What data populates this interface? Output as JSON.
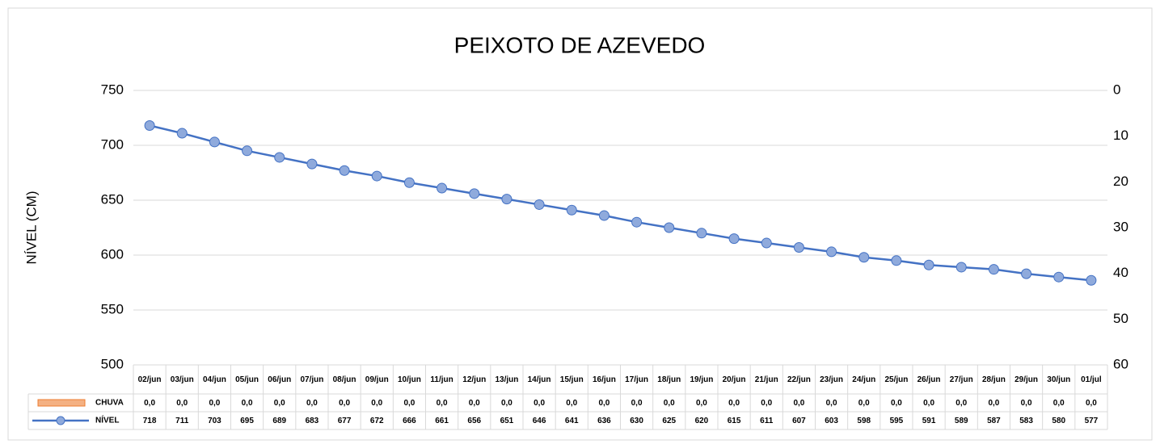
{
  "chart_data": {
    "type": "line",
    "title": "PEIXOTO DE AZEVEDO",
    "y_label": "NÍVEL (CM)",
    "categories": [
      "02/jun",
      "03/jun",
      "04/jun",
      "05/jun",
      "06/jun",
      "07/jun",
      "08/jun",
      "09/jun",
      "10/jun",
      "11/jun",
      "12/jun",
      "13/jun",
      "14/jun",
      "15/jun",
      "16/jun",
      "17/jun",
      "18/jun",
      "19/jun",
      "20/jun",
      "21/jun",
      "22/jun",
      "23/jun",
      "24/jun",
      "25/jun",
      "26/jun",
      "27/jun",
      "28/jun",
      "29/jun",
      "30/jun",
      "01/jul"
    ],
    "series": [
      {
        "name": "CHUVA",
        "type": "bar",
        "axis": "y2",
        "color": "#f4b183",
        "values": [
          0,
          0,
          0,
          0,
          0,
          0,
          0,
          0,
          0,
          0,
          0,
          0,
          0,
          0,
          0,
          0,
          0,
          0,
          0,
          0,
          0,
          0,
          0,
          0,
          0,
          0,
          0,
          0,
          0,
          0
        ],
        "value_labels": [
          "0,0",
          "0,0",
          "0,0",
          "0,0",
          "0,0",
          "0,0",
          "0,0",
          "0,0",
          "0,0",
          "0,0",
          "0,0",
          "0,0",
          "0,0",
          "0,0",
          "0,0",
          "0,0",
          "0,0",
          "0,0",
          "0,0",
          "0,0",
          "0,0",
          "0,0",
          "0,0",
          "0,0",
          "0,0",
          "0,0",
          "0,0",
          "0,0",
          "0,0",
          "0,0"
        ]
      },
      {
        "name": "NÍVEL",
        "type": "line",
        "color": "#4472c4",
        "values": [
          718,
          711,
          703,
          695,
          689,
          683,
          677,
          672,
          666,
          661,
          656,
          651,
          646,
          641,
          636,
          630,
          625,
          620,
          615,
          611,
          607,
          603,
          598,
          595,
          591,
          589,
          587,
          583,
          580,
          577
        ]
      }
    ],
    "ylim": [
      500,
      750
    ],
    "yticks": [
      500,
      550,
      600,
      650,
      700,
      750
    ],
    "y2lim": [
      60,
      0
    ],
    "y2ticks": [
      0,
      10,
      20,
      30,
      40,
      50,
      60
    ],
    "grid": true
  }
}
